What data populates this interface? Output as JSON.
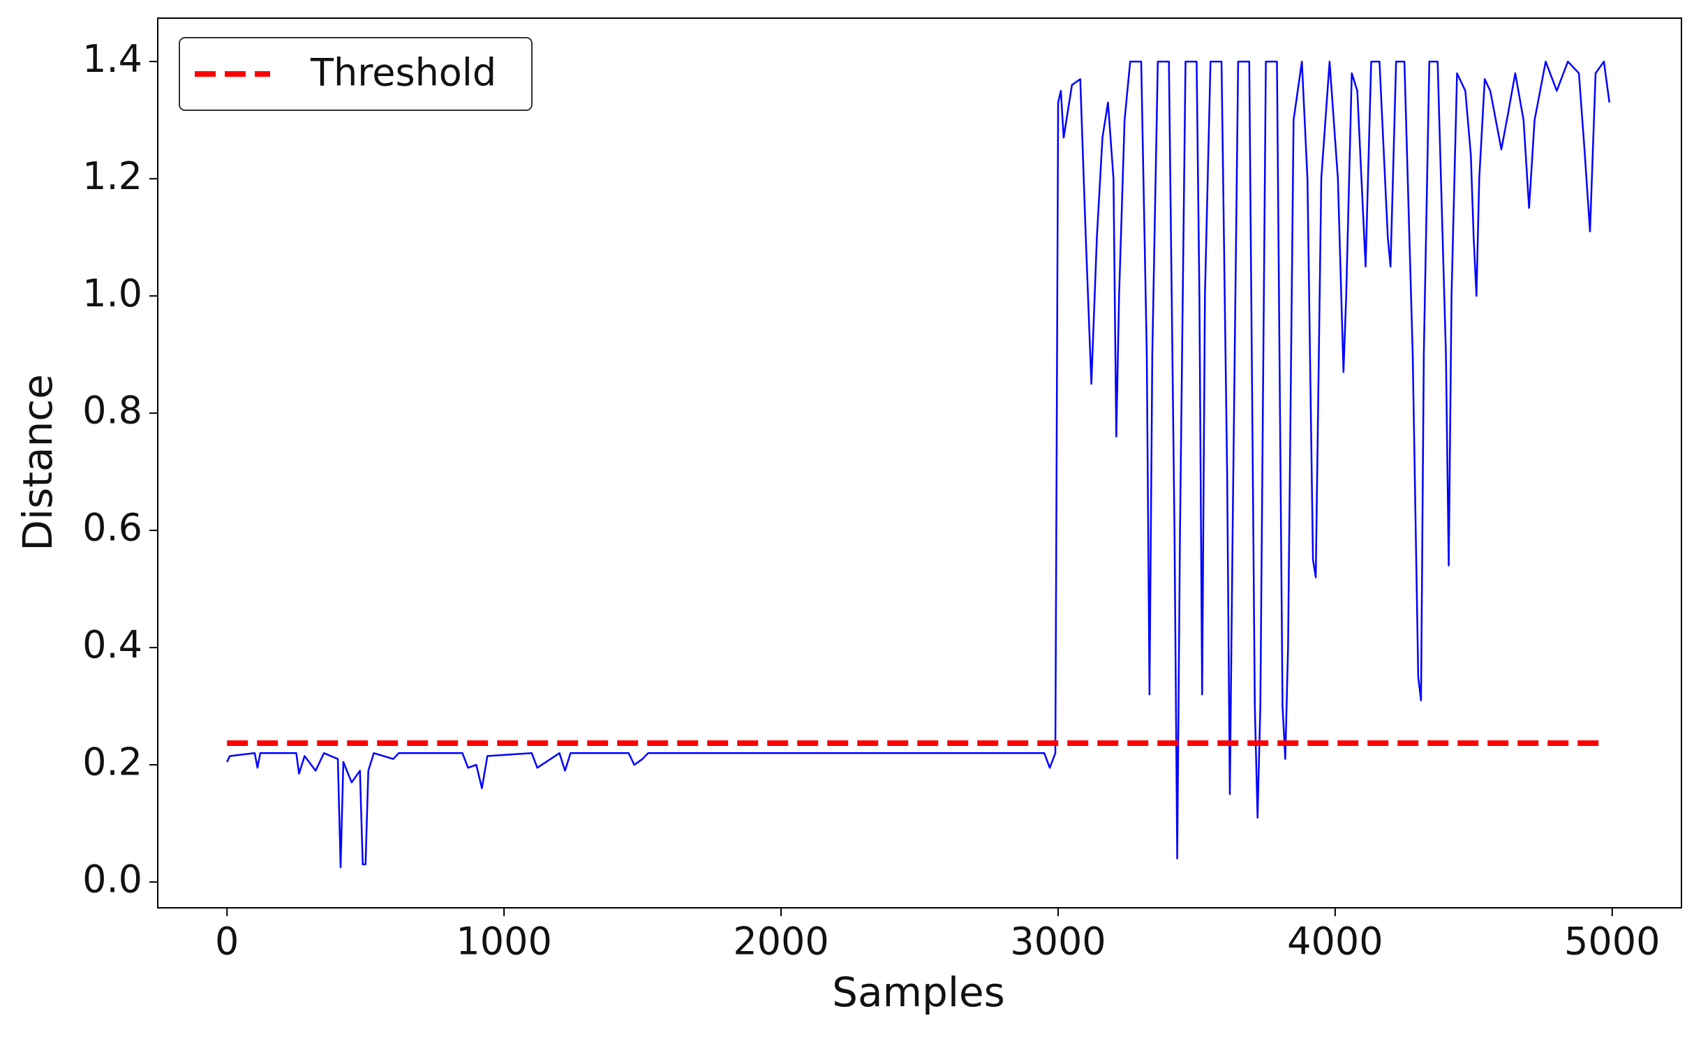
{
  "chart_data": {
    "type": "line",
    "xlabel": "Samples",
    "ylabel": "Distance",
    "series": [
      {
        "color": "#0000ff",
        "x": [
          0,
          10,
          100,
          110,
          120,
          250,
          260,
          280,
          320,
          350,
          400,
          410,
          420,
          450,
          480,
          490,
          500,
          510,
          530,
          600,
          620,
          850,
          870,
          900,
          920,
          940,
          1100,
          1120,
          1200,
          1220,
          1240,
          1450,
          1470,
          1500,
          1520,
          2950,
          2970,
          2990,
          3000,
          3010,
          3020,
          3050,
          3080,
          3100,
          3120,
          3140,
          3160,
          3180,
          3200,
          3210,
          3220,
          3240,
          3260,
          3300,
          3320,
          3330,
          3340,
          3360,
          3400,
          3420,
          3430,
          3440,
          3460,
          3500,
          3510,
          3520,
          3530,
          3550,
          3590,
          3610,
          3620,
          3630,
          3650,
          3690,
          3710,
          3720,
          3730,
          3750,
          3790,
          3810,
          3820,
          3830,
          3850,
          3880,
          3900,
          3920,
          3930,
          3950,
          3980,
          4010,
          4030,
          4040,
          4060,
          4080,
          4110,
          4130,
          4160,
          4190,
          4200,
          4220,
          4250,
          4280,
          4300,
          4310,
          4320,
          4340,
          4370,
          4400,
          4410,
          4420,
          4440,
          4470,
          4490,
          4500,
          4510,
          4520,
          4540,
          4560,
          4600,
          4620,
          4650,
          4680,
          4700,
          4720,
          4760,
          4800,
          4840,
          4880,
          4900,
          4920,
          4940,
          4970,
          4990
        ],
        "values": [
          0.205,
          0.215,
          0.22,
          0.195,
          0.22,
          0.22,
          0.185,
          0.215,
          0.19,
          0.22,
          0.21,
          0.025,
          0.205,
          0.17,
          0.19,
          0.03,
          0.03,
          0.19,
          0.22,
          0.21,
          0.22,
          0.22,
          0.195,
          0.2,
          0.16,
          0.215,
          0.22,
          0.195,
          0.22,
          0.19,
          0.22,
          0.22,
          0.2,
          0.21,
          0.22,
          0.22,
          0.195,
          0.22,
          1.33,
          1.35,
          1.27,
          1.36,
          1.37,
          1.1,
          0.85,
          1.1,
          1.27,
          1.33,
          1.2,
          0.76,
          1.0,
          1.3,
          1.4,
          1.4,
          0.9,
          0.32,
          0.9,
          1.4,
          1.4,
          0.6,
          0.04,
          0.6,
          1.4,
          1.4,
          1.0,
          0.32,
          1.0,
          1.4,
          1.4,
          0.7,
          0.15,
          0.6,
          1.4,
          1.4,
          0.3,
          0.11,
          0.3,
          1.4,
          1.4,
          0.3,
          0.21,
          0.4,
          1.3,
          1.4,
          1.2,
          0.55,
          0.52,
          1.2,
          1.4,
          1.2,
          0.87,
          1.0,
          1.38,
          1.35,
          1.05,
          1.4,
          1.4,
          1.1,
          1.05,
          1.4,
          1.4,
          0.9,
          0.35,
          0.31,
          0.9,
          1.4,
          1.4,
          0.9,
          0.54,
          1.0,
          1.38,
          1.35,
          1.24,
          1.1,
          1.0,
          1.2,
          1.37,
          1.35,
          1.25,
          1.3,
          1.38,
          1.3,
          1.15,
          1.3,
          1.4,
          1.35,
          1.4,
          1.38,
          1.25,
          1.11,
          1.38,
          1.4,
          1.33
        ]
      },
      {
        "name": "Threshold",
        "color": "#ff0000",
        "dashed": true,
        "x": [
          0,
          4960
        ],
        "values": [
          0.237,
          0.237
        ]
      }
    ],
    "xlim": [
      -250,
      5250
    ],
    "xticks": [
      0,
      1000,
      2000,
      3000,
      4000,
      5000
    ],
    "ylim": [
      -0.044,
      1.474
    ],
    "yticks": [
      {
        "value": 0,
        "label": "0.0"
      },
      0.2,
      0.4,
      0.6,
      0.8,
      {
        "value": 1,
        "label": "1.0"
      },
      1.2,
      1.4
    ],
    "legend": "upper left",
    "grid": false
  }
}
